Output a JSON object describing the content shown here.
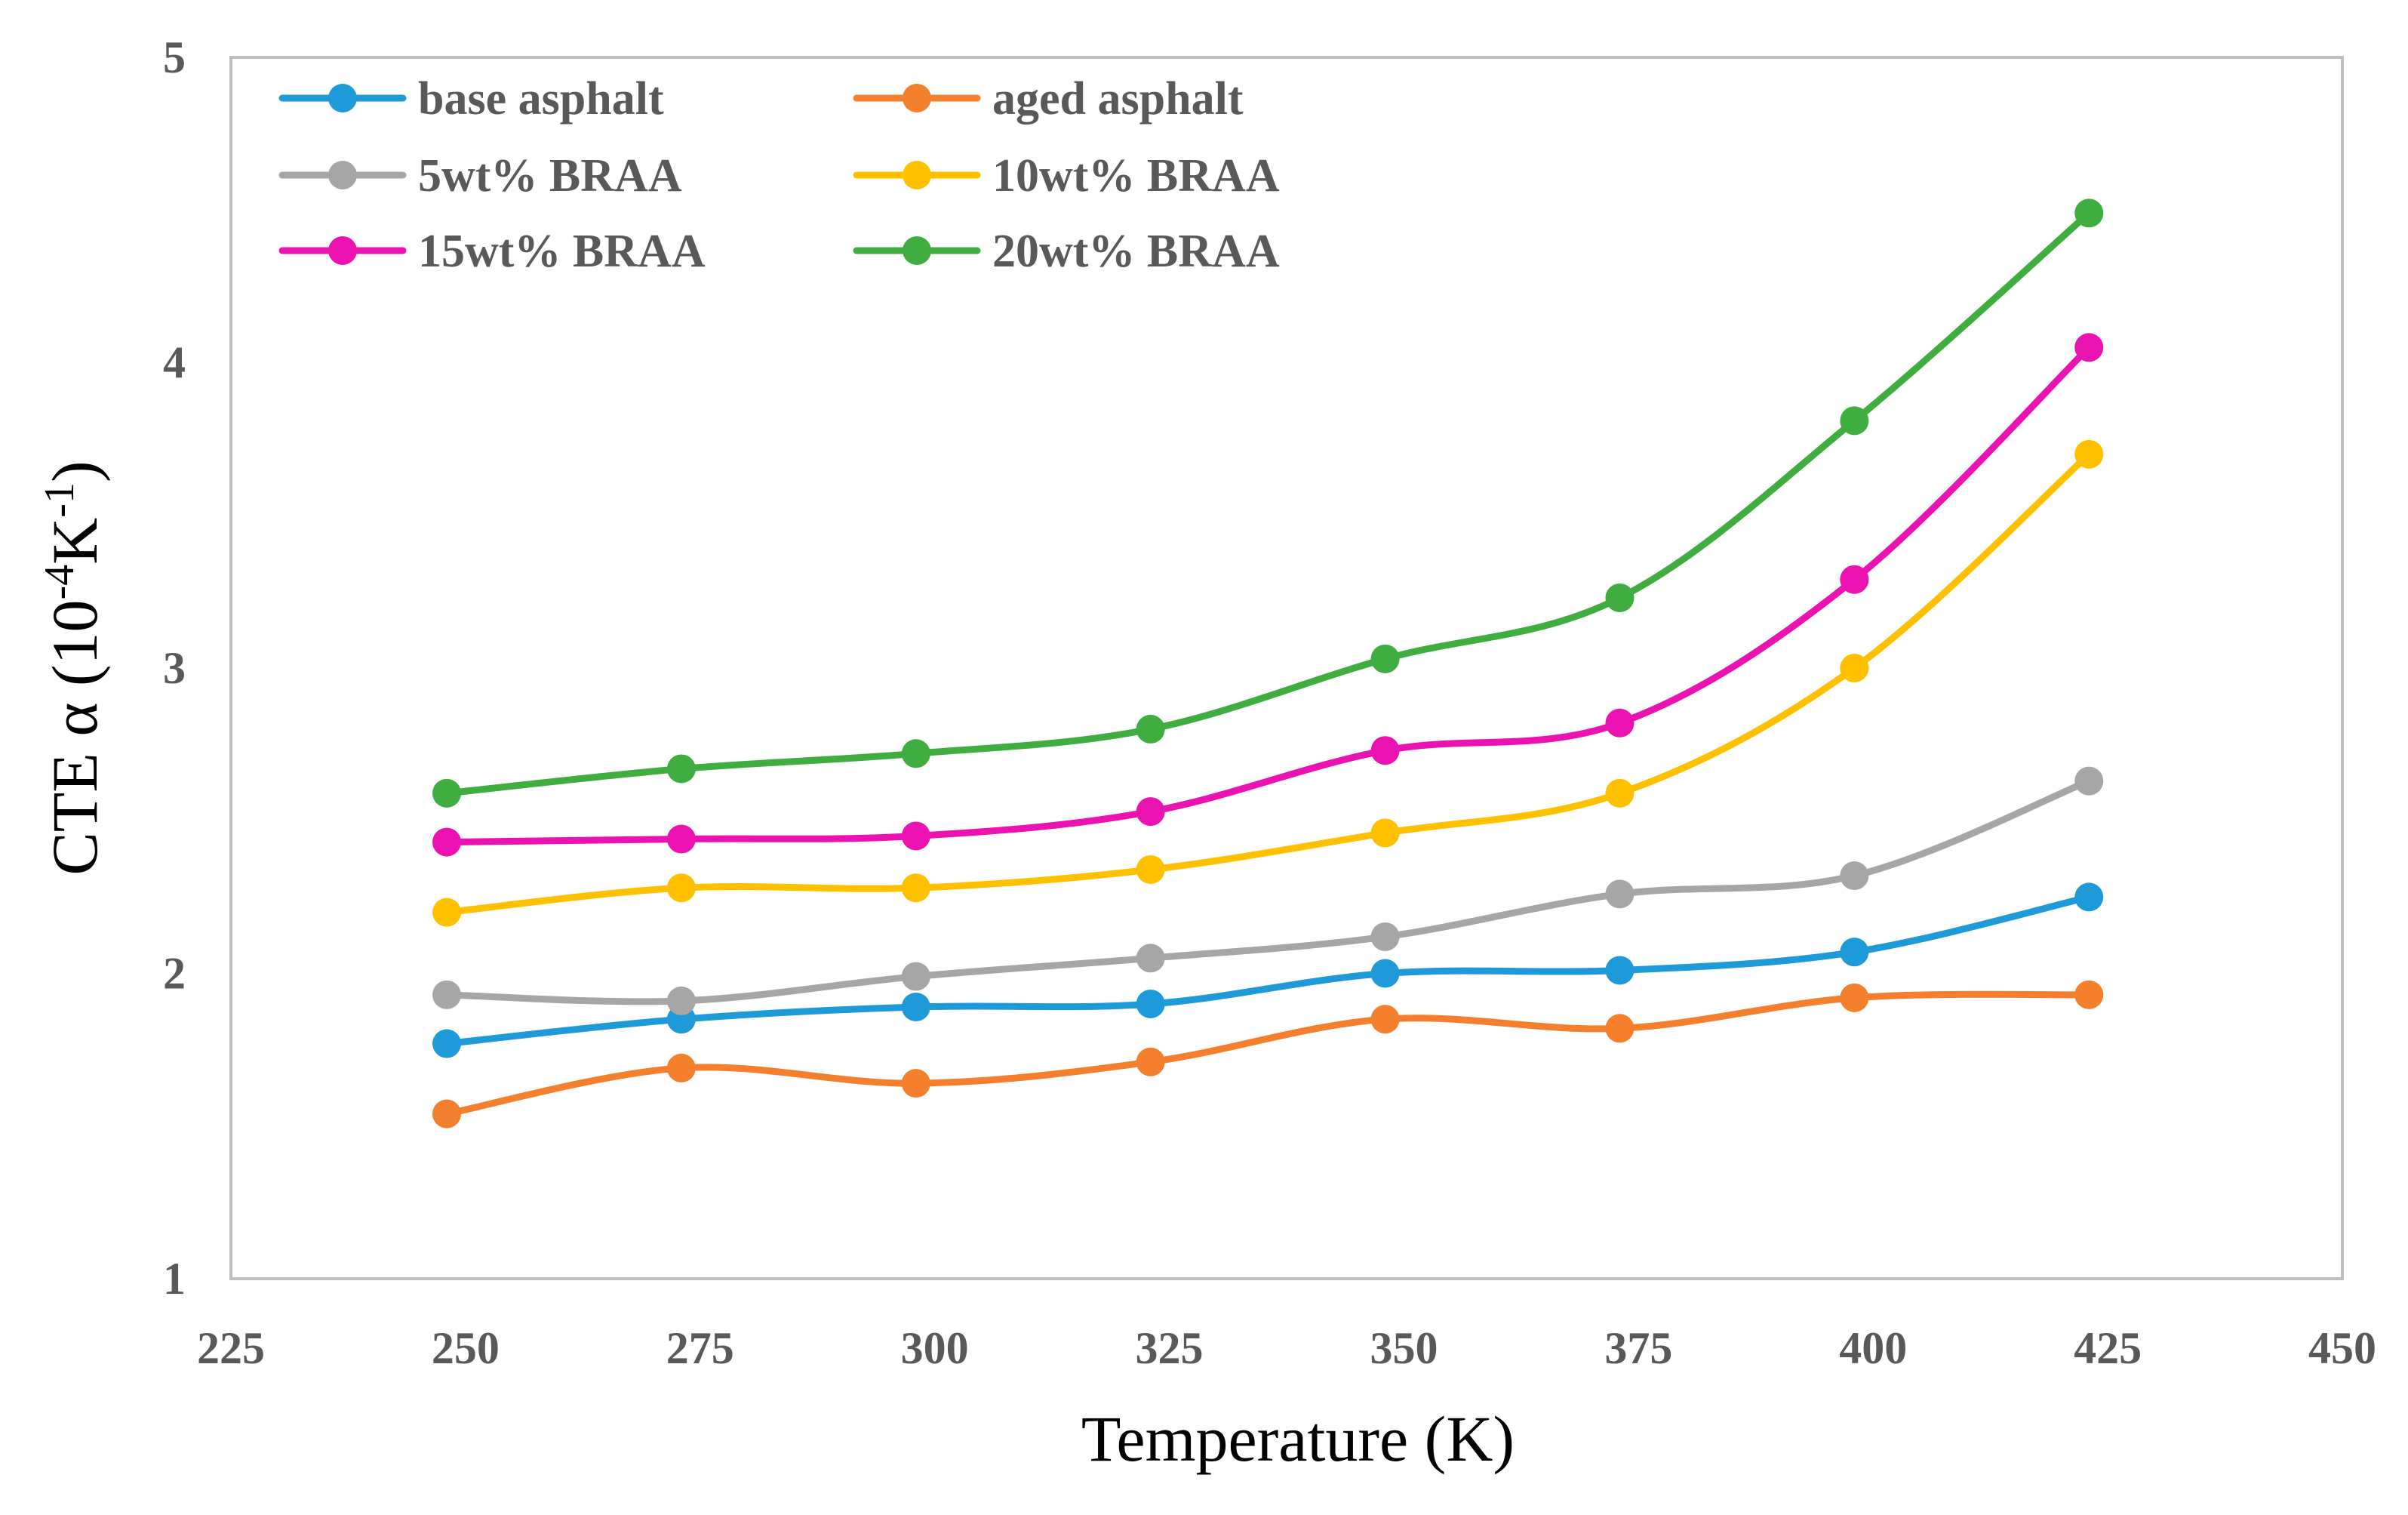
{
  "chart_data": {
    "type": "line",
    "title": "",
    "xlabel": "Temperature (K)",
    "ylabel": {
      "main": "CTE α (10",
      "sup1": "-4",
      "mid": "K",
      "sup2": "-1",
      "end": ")"
    },
    "xlim": [
      225,
      450
    ],
    "ylim": [
      1,
      5
    ],
    "xticks": [
      225,
      250,
      275,
      300,
      325,
      350,
      375,
      400,
      425,
      450
    ],
    "yticks": [
      1,
      2,
      3,
      4,
      5
    ],
    "x": [
      248,
      273,
      298,
      323,
      348,
      373,
      398,
      423
    ],
    "grid": false,
    "legend_position": "top-left",
    "series": [
      {
        "name": "base asphalt",
        "color": "#1f9ad8",
        "values": [
          1.77,
          1.85,
          1.89,
          1.9,
          2.0,
          2.01,
          2.07,
          2.25
        ]
      },
      {
        "name": "aged asphalt",
        "color": "#f47f2c",
        "values": [
          1.54,
          1.69,
          1.64,
          1.71,
          1.85,
          1.82,
          1.92,
          1.93
        ]
      },
      {
        "name": "5wt% BRAA",
        "color": "#a6a6a6",
        "values": [
          1.93,
          1.91,
          1.99,
          2.05,
          2.12,
          2.26,
          2.32,
          2.63
        ]
      },
      {
        "name": "10wt% BRAA",
        "color": "#ffc000",
        "values": [
          2.2,
          2.28,
          2.28,
          2.34,
          2.46,
          2.59,
          3.0,
          3.7
        ]
      },
      {
        "name": "15wt% BRAA",
        "color": "#ea12b0",
        "values": [
          2.43,
          2.44,
          2.45,
          2.53,
          2.73,
          2.82,
          3.29,
          4.05
        ]
      },
      {
        "name": "20wt% BRAA",
        "color": "#3fad3f",
        "values": [
          2.59,
          2.67,
          2.72,
          2.8,
          3.03,
          3.23,
          3.81,
          4.49
        ]
      }
    ]
  }
}
